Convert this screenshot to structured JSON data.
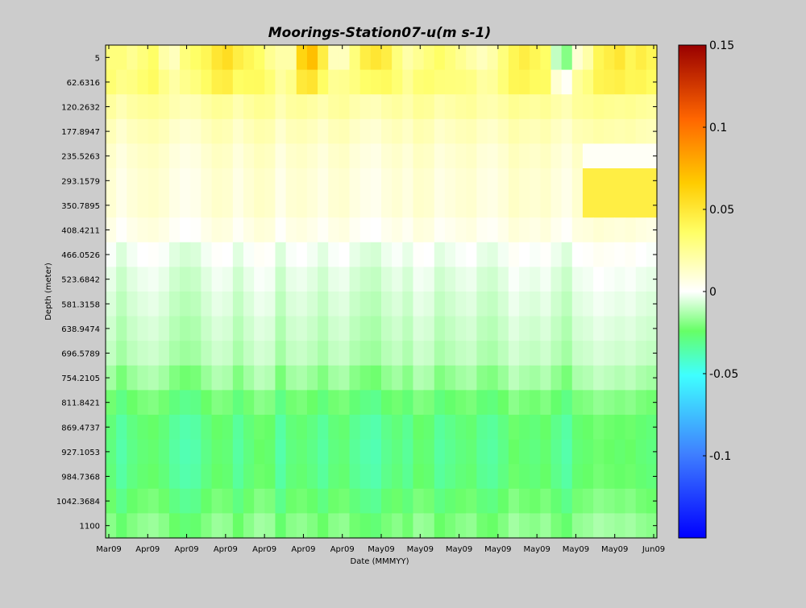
{
  "chart_data": {
    "type": "heatmap",
    "title": "Moorings-Station07-u(m s-1)",
    "xlabel": "Date (MMMYY)",
    "ylabel": "Depth (meter)",
    "x_tick_labels": [
      "Mar09",
      "Apr09",
      "Apr09",
      "Apr09",
      "Apr09",
      "Apr09",
      "Apr09",
      "May09",
      "May09",
      "May09",
      "May09",
      "May09",
      "May09",
      "May09",
      "Jun09"
    ],
    "y_tick_labels": [
      "5",
      "62.6316",
      "120.2632",
      "177.8947",
      "235.5263",
      "293.1579",
      "350.7895",
      "408.4211",
      "466.0526",
      "523.6842",
      "581.3158",
      "638.9474",
      "696.5789",
      "754.2105",
      "811.8421",
      "869.4737",
      "927.1053",
      "984.7368",
      "1042.3684",
      "1100"
    ],
    "depths_m": [
      5,
      62.6316,
      120.2632,
      177.8947,
      235.5263,
      293.1579,
      350.7895,
      408.4211,
      466.0526,
      523.6842,
      581.3158,
      638.9474,
      696.5789,
      754.2105,
      811.8421,
      869.4737,
      927.1053,
      984.7368,
      1042.3684,
      1100
    ],
    "colorbar": {
      "label_values": [
        0.15,
        0.1,
        0.05,
        0,
        -0.05,
        -0.1
      ],
      "labels": [
        "0.15",
        "0.1",
        "0.05",
        "0",
        "-0.05",
        "-0.1"
      ],
      "range": [
        -0.15,
        0.15
      ],
      "colormap": [
        "#0000ff",
        "#3f7fff",
        "#3fffff",
        "#66ff66",
        "#ffffff",
        "#ffff66",
        "#ffcc00",
        "#ff6600",
        "#990000"
      ]
    },
    "n_time_columns": 52,
    "depth_profile_u": [
      0.035,
      0.03,
      0.02,
      0.014,
      0.01,
      0.008,
      0.008,
      0.004,
      -0.003,
      -0.006,
      -0.008,
      -0.01,
      -0.012,
      -0.018,
      -0.026,
      -0.031,
      -0.032,
      -0.031,
      -0.027,
      -0.022
    ],
    "column_offset_u": [
      0.002,
      -0.003,
      0.001,
      0.003,
      0.004,
      0.002,
      -0.002,
      -0.004,
      -0.003,
      0.001,
      0.004,
      0.003,
      -0.002,
      0.002,
      0.005,
      0.004,
      -0.003,
      0.002,
      0.003,
      0.001,
      -0.002,
      0.002,
      0.003,
      -0.001,
      -0.003,
      -0.004,
      0,
      0.002,
      -0.001,
      0.004,
      0.003,
      -0.002,
      0,
      0.002,
      0.003,
      -0.001,
      -0.002,
      0.001,
      0.005,
      0.003,
      0.002,
      0.004,
      0,
      -0.003,
      0.003,
      0.004,
      0.006,
      0.005,
      0.004,
      0.005,
      0.003,
      0.002
    ],
    "surface_column_u": [
      0.03,
      0.03,
      0.025,
      0.03,
      0.035,
      0.02,
      0.015,
      0.03,
      0.035,
      0.04,
      0.05,
      0.055,
      0.045,
      0.04,
      0.035,
      0.025,
      0.02,
      0.02,
      0.06,
      0.07,
      0.045,
      0.015,
      0.015,
      0.03,
      0.045,
      0.05,
      0.045,
      0.03,
      0.02,
      0.025,
      0.03,
      0.035,
      0.03,
      0.025,
      0.02,
      0.015,
      0.02,
      0.03,
      0.04,
      0.045,
      0.04,
      0.035,
      -0.01,
      -0.02,
      0.01,
      0.02,
      0.04,
      0.045,
      0.05,
      0.04,
      0.045,
      0.04
    ]
  }
}
